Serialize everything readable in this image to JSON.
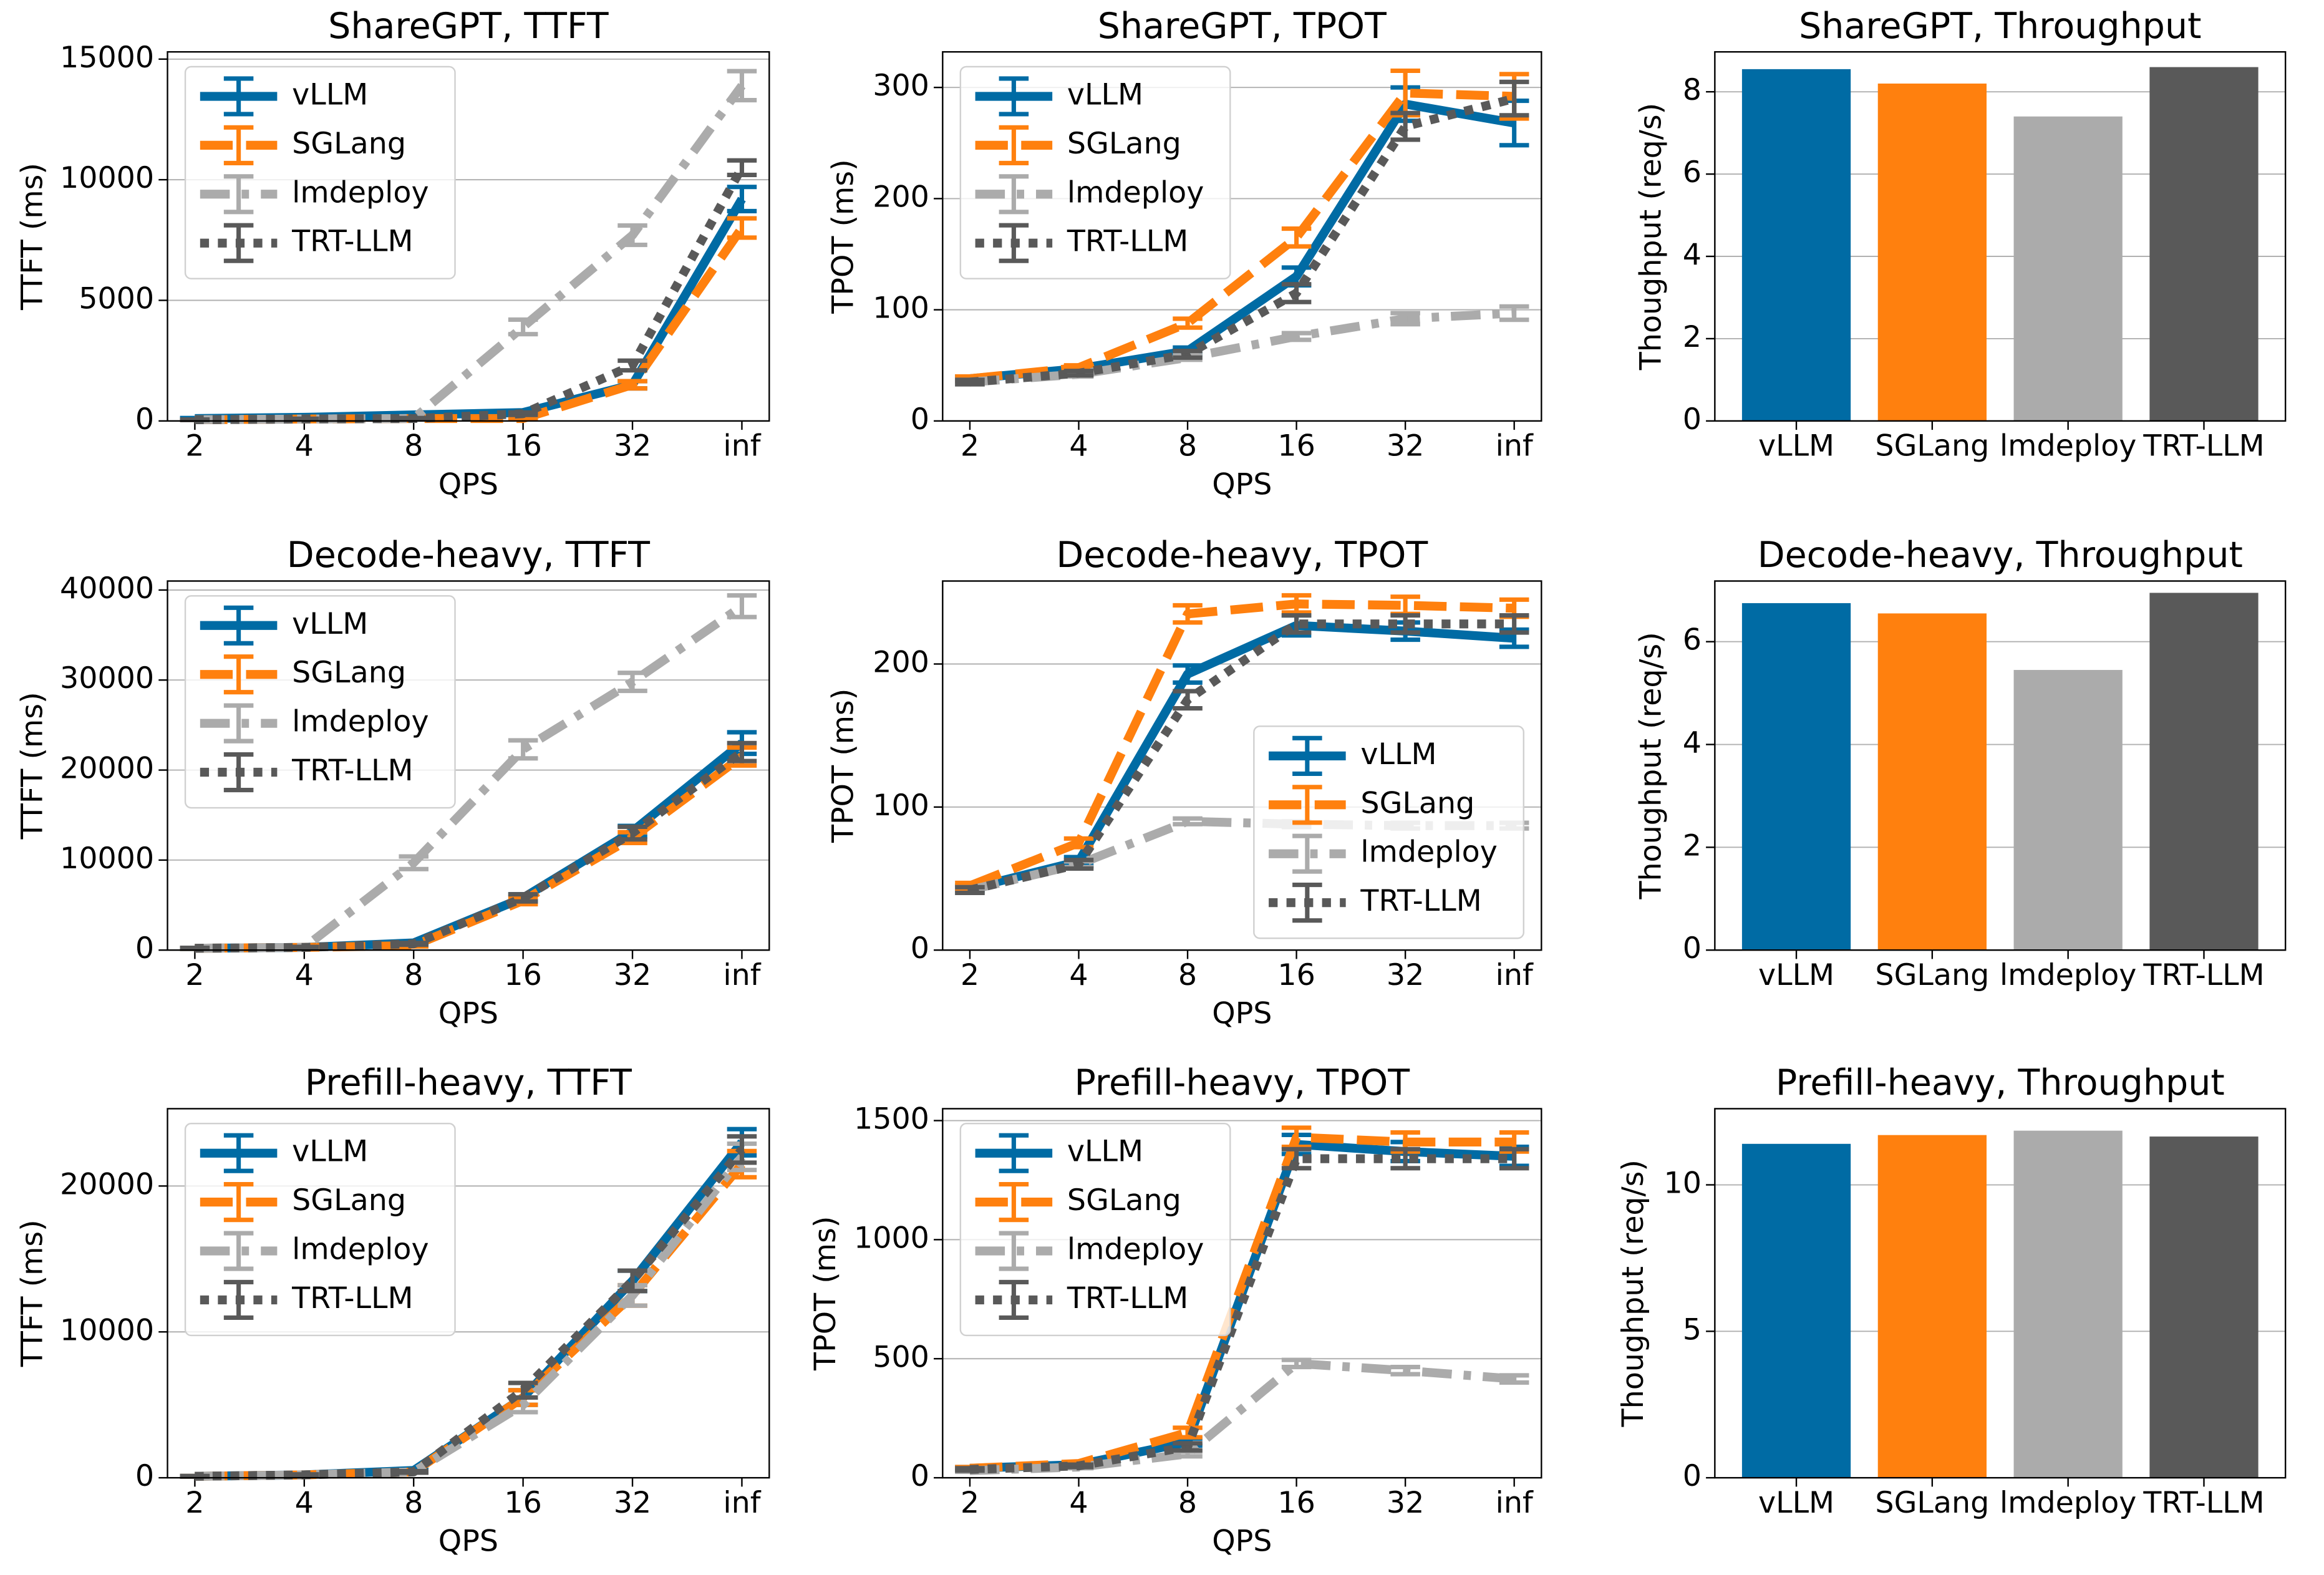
{
  "chart_data": [
    {
      "type": "line",
      "title": "ShareGPT, TTFT",
      "xlabel": "QPS",
      "ylabel": "TTFT (ms)",
      "categories": [
        "2",
        "4",
        "8",
        "16",
        "32",
        "inf"
      ],
      "ylim": [
        0,
        15300
      ],
      "yticks": [
        0,
        5000,
        10000,
        15000
      ],
      "grid": true,
      "legend": "upper left",
      "series": [
        {
          "name": "vLLM",
          "color": "#006ba4",
          "linestyle": "solid",
          "values": [
            100,
            150,
            250,
            350,
            1500,
            9200
          ],
          "errors": [
            20,
            20,
            30,
            50,
            150,
            500
          ]
        },
        {
          "name": "SGLang",
          "color": "#ff800e",
          "linestyle": "dashed",
          "values": [
            50,
            80,
            100,
            100,
            1500,
            8000
          ],
          "errors": [
            10,
            10,
            20,
            30,
            150,
            400
          ]
        },
        {
          "name": "lmdeploy",
          "color": "#ababab",
          "linestyle": "dashdot",
          "values": [
            50,
            80,
            100,
            3900,
            7700,
            13900
          ],
          "errors": [
            10,
            10,
            20,
            300,
            400,
            600
          ]
        },
        {
          "name": "TRT-LLM",
          "color": "#595959",
          "linestyle": "dotted",
          "values": [
            50,
            80,
            100,
            300,
            2300,
            10500
          ],
          "errors": [
            10,
            10,
            20,
            50,
            200,
            300
          ]
        }
      ]
    },
    {
      "type": "line",
      "title": "ShareGPT, TPOT",
      "xlabel": "QPS",
      "ylabel": "TPOT (ms)",
      "categories": [
        "2",
        "4",
        "8",
        "16",
        "32",
        "inf"
      ],
      "ylim": [
        0,
        332
      ],
      "yticks": [
        0,
        100,
        200,
        300
      ],
      "grid": true,
      "legend": "upper left",
      "series": [
        {
          "name": "vLLM",
          "color": "#006ba4",
          "linestyle": "solid",
          "values": [
            38,
            47,
            63,
            130,
            285,
            268
          ],
          "errors": [
            2,
            2,
            3,
            8,
            15,
            20
          ]
        },
        {
          "name": "SGLang",
          "color": "#ff800e",
          "linestyle": "dashed",
          "values": [
            38,
            48,
            88,
            165,
            295,
            292
          ],
          "errors": [
            2,
            2,
            4,
            8,
            20,
            20
          ]
        },
        {
          "name": "lmdeploy",
          "color": "#ababab",
          "linestyle": "dashdot",
          "values": [
            35,
            42,
            57,
            76,
            92,
            97
          ],
          "errors": [
            2,
            2,
            2,
            3,
            5,
            6
          ]
        },
        {
          "name": "TRT-LLM",
          "color": "#595959",
          "linestyle": "dotted",
          "values": [
            35,
            43,
            60,
            115,
            265,
            290
          ],
          "errors": [
            2,
            2,
            3,
            8,
            12,
            15
          ]
        }
      ]
    },
    {
      "type": "bar",
      "title": "ShareGPT, Throughput",
      "ylabel": "Thoughput (req/s)",
      "categories": [
        "vLLM",
        "SGLang",
        "lmdeploy",
        "TRT-LLM"
      ],
      "values": [
        8.55,
        8.2,
        7.4,
        8.6
      ],
      "colors": [
        "#006ba4",
        "#ff800e",
        "#ababab",
        "#595959"
      ],
      "ylim": [
        0,
        8.97
      ],
      "yticks": [
        0,
        2,
        4,
        6,
        8
      ],
      "grid": true
    },
    {
      "type": "line",
      "title": "Decode-heavy, TTFT",
      "xlabel": "QPS",
      "ylabel": "TTFT (ms)",
      "categories": [
        "2",
        "4",
        "8",
        "16",
        "32",
        "inf"
      ],
      "ylim": [
        0,
        41000
      ],
      "yticks": [
        0,
        10000,
        20000,
        30000,
        40000
      ],
      "grid": true,
      "legend": "upper left",
      "series": [
        {
          "name": "vLLM",
          "color": "#006ba4",
          "linestyle": "solid",
          "values": [
            200,
            300,
            800,
            5800,
            13200,
            23000
          ],
          "errors": [
            50,
            50,
            100,
            400,
            600,
            1200
          ]
        },
        {
          "name": "SGLang",
          "color": "#ff800e",
          "linestyle": "dashed",
          "values": [
            200,
            300,
            500,
            5500,
            12500,
            21500
          ],
          "errors": [
            50,
            50,
            100,
            400,
            600,
            1000
          ]
        },
        {
          "name": "lmdeploy",
          "color": "#ababab",
          "linestyle": "dashdot",
          "values": [
            200,
            300,
            9700,
            22300,
            29800,
            38200
          ],
          "errors": [
            50,
            50,
            700,
            1000,
            1000,
            1200
          ]
        },
        {
          "name": "TRT-LLM",
          "color": "#595959",
          "linestyle": "dotted",
          "values": [
            200,
            300,
            700,
            5800,
            13000,
            22000
          ],
          "errors": [
            50,
            50,
            100,
            400,
            700,
            1000
          ]
        }
      ]
    },
    {
      "type": "line",
      "title": "Decode-heavy, TPOT",
      "xlabel": "QPS",
      "ylabel": "TPOT (ms)",
      "categories": [
        "2",
        "4",
        "8",
        "16",
        "32",
        "inf"
      ],
      "ylim": [
        0,
        258
      ],
      "yticks": [
        0,
        100,
        200
      ],
      "grid": true,
      "legend": "lower right",
      "series": [
        {
          "name": "vLLM",
          "color": "#006ba4",
          "linestyle": "solid",
          "values": [
            43,
            62,
            193,
            227,
            223,
            218
          ],
          "errors": [
            2,
            3,
            6,
            7,
            6,
            6
          ]
        },
        {
          "name": "SGLang",
          "color": "#ff800e",
          "linestyle": "dashed",
          "values": [
            45,
            75,
            235,
            242,
            241,
            239
          ],
          "errors": [
            2,
            3,
            6,
            6,
            6,
            6
          ]
        },
        {
          "name": "lmdeploy",
          "color": "#ababab",
          "linestyle": "dashdot",
          "values": [
            42,
            60,
            90,
            88,
            87,
            87
          ],
          "errors": [
            2,
            2,
            2,
            2,
            2,
            2
          ]
        },
        {
          "name": "TRT-LLM",
          "color": "#595959",
          "linestyle": "dotted",
          "values": [
            42,
            60,
            175,
            228,
            228,
            228
          ],
          "errors": [
            2,
            3,
            6,
            6,
            6,
            6
          ]
        }
      ]
    },
    {
      "type": "bar",
      "title": "Decode-heavy, Throughput",
      "ylabel": "Thoughput (req/s)",
      "categories": [
        "vLLM",
        "SGLang",
        "lmdeploy",
        "TRT-LLM"
      ],
      "values": [
        6.75,
        6.55,
        5.45,
        6.95
      ],
      "colors": [
        "#006ba4",
        "#ff800e",
        "#ababab",
        "#595959"
      ],
      "ylim": [
        0,
        7.18
      ],
      "yticks": [
        0,
        2,
        4,
        6
      ],
      "grid": true
    },
    {
      "type": "line",
      "title": "Prefill-heavy, TTFT",
      "xlabel": "QPS",
      "ylabel": "TTFT (ms)",
      "categories": [
        "2",
        "4",
        "8",
        "16",
        "32",
        "inf"
      ],
      "ylim": [
        0,
        25300
      ],
      "yticks": [
        0,
        10000,
        20000
      ],
      "grid": true,
      "legend": "upper left",
      "series": [
        {
          "name": "vLLM",
          "color": "#006ba4",
          "linestyle": "solid",
          "values": [
            100,
            200,
            500,
            5500,
            13500,
            23000
          ],
          "errors": [
            20,
            30,
            50,
            500,
            700,
            900
          ]
        },
        {
          "name": "SGLang",
          "color": "#ff800e",
          "linestyle": "dashed",
          "values": [
            100,
            200,
            400,
            5500,
            12500,
            21500
          ],
          "errors": [
            20,
            30,
            50,
            500,
            700,
            900
          ]
        },
        {
          "name": "lmdeploy",
          "color": "#ababab",
          "linestyle": "dashdot",
          "values": [
            100,
            200,
            400,
            5000,
            12500,
            22000
          ],
          "errors": [
            20,
            30,
            50,
            500,
            700,
            900
          ]
        },
        {
          "name": "TRT-LLM",
          "color": "#595959",
          "linestyle": "dotted",
          "values": [
            100,
            200,
            400,
            6000,
            13500,
            22500
          ],
          "errors": [
            20,
            30,
            50,
            500,
            700,
            900
          ]
        }
      ]
    },
    {
      "type": "line",
      "title": "Prefill-heavy, TPOT",
      "xlabel": "QPS",
      "ylabel": "TPOT (ms)",
      "categories": [
        "2",
        "4",
        "8",
        "16",
        "32",
        "inf"
      ],
      "ylim": [
        0,
        1550
      ],
      "yticks": [
        0,
        500,
        1000,
        1500
      ],
      "grid": true,
      "legend": "upper left",
      "series": [
        {
          "name": "vLLM",
          "color": "#006ba4",
          "linestyle": "solid",
          "values": [
            40,
            55,
            150,
            1400,
            1370,
            1350
          ],
          "errors": [
            5,
            5,
            15,
            40,
            40,
            40
          ]
        },
        {
          "name": "SGLang",
          "color": "#ff800e",
          "linestyle": "dashed",
          "values": [
            40,
            60,
            190,
            1430,
            1410,
            1410
          ],
          "errors": [
            5,
            5,
            20,
            40,
            40,
            40
          ]
        },
        {
          "name": "lmdeploy",
          "color": "#ababab",
          "linestyle": "dashdot",
          "values": [
            30,
            45,
            100,
            480,
            450,
            415
          ],
          "errors": [
            5,
            5,
            10,
            15,
            15,
            15
          ]
        },
        {
          "name": "TRT-LLM",
          "color": "#595959",
          "linestyle": "dotted",
          "values": [
            35,
            50,
            130,
            1340,
            1340,
            1340
          ],
          "errors": [
            5,
            5,
            15,
            40,
            40,
            40
          ]
        }
      ]
    },
    {
      "type": "bar",
      "title": "Prefill-heavy, Throughput",
      "ylabel": "Thoughput (req/s)",
      "categories": [
        "vLLM",
        "SGLang",
        "lmdeploy",
        "TRT-LLM"
      ],
      "values": [
        11.4,
        11.7,
        11.85,
        11.65
      ],
      "colors": [
        "#006ba4",
        "#ff800e",
        "#ababab",
        "#595959"
      ],
      "ylim": [
        0,
        12.6
      ],
      "yticks": [
        0,
        5,
        10
      ],
      "grid": true
    }
  ]
}
